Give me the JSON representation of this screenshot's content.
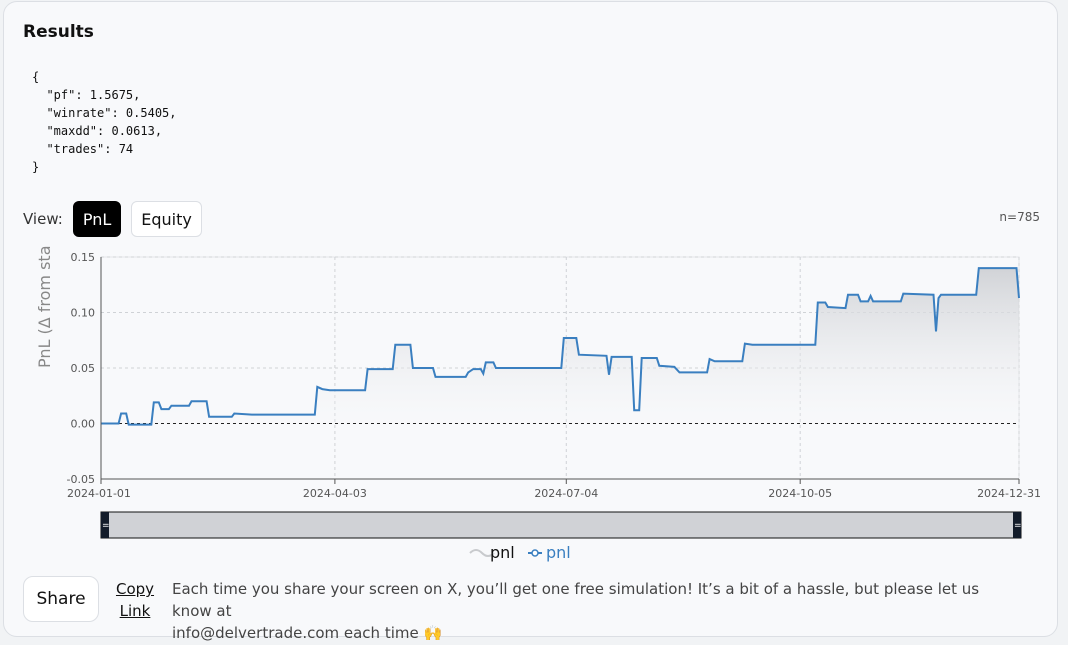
{
  "results": {
    "title": "Results",
    "json_text": "{\n  \"pf\": 1.5675,\n  \"winrate\": 0.5405,\n  \"maxdd\": 0.0613,\n  \"trades\": 74\n}"
  },
  "view": {
    "label": "View:",
    "options": [
      "PnL",
      "Equity"
    ],
    "selected": "PnL",
    "count": "n=785"
  },
  "chart_data": {
    "type": "line",
    "ylabel": "PnL (Δ from sta",
    "xlabel": "",
    "x_ticks": [
      "2024-01-01",
      "2024-04-03",
      "2024-07-04",
      "2024-10-05",
      "2024-12-31"
    ],
    "y_ticks": [
      "0.15",
      "0.10",
      "0.05",
      "0.00",
      "-0.05"
    ],
    "ylim": [
      -0.05,
      0.15
    ],
    "xlim": [
      "2024-01-01",
      "2024-12-31"
    ],
    "grid": true,
    "zero_line": true,
    "legend": [
      "pnl",
      "pnl"
    ],
    "legend_position": "bottom",
    "range_slider": true,
    "series": [
      {
        "name": "pnl",
        "points": [
          [
            "2024-01-01",
            0.0
          ],
          [
            "2024-01-08",
            0.0
          ],
          [
            "2024-01-09",
            0.009
          ],
          [
            "2024-01-11",
            0.009
          ],
          [
            "2024-01-12",
            -0.001
          ],
          [
            "2024-01-21",
            -0.001
          ],
          [
            "2024-01-22",
            0.019
          ],
          [
            "2024-01-24",
            0.019
          ],
          [
            "2024-01-25",
            0.013
          ],
          [
            "2024-01-28",
            0.013
          ],
          [
            "2024-01-29",
            0.016
          ],
          [
            "2024-02-05",
            0.016
          ],
          [
            "2024-02-06",
            0.02
          ],
          [
            "2024-02-12",
            0.02
          ],
          [
            "2024-02-13",
            0.006
          ],
          [
            "2024-02-22",
            0.006
          ],
          [
            "2024-02-23",
            0.009
          ],
          [
            "2024-03-01",
            0.008
          ],
          [
            "2024-03-26",
            0.008
          ],
          [
            "2024-03-27",
            0.033
          ],
          [
            "2024-03-29",
            0.031
          ],
          [
            "2024-04-01",
            0.03
          ],
          [
            "2024-04-15",
            0.03
          ],
          [
            "2024-04-16",
            0.049
          ],
          [
            "2024-04-26",
            0.049
          ],
          [
            "2024-04-27",
            0.071
          ],
          [
            "2024-05-03",
            0.071
          ],
          [
            "2024-05-04",
            0.05
          ],
          [
            "2024-05-12",
            0.05
          ],
          [
            "2024-05-13",
            0.042
          ],
          [
            "2024-05-25",
            0.042
          ],
          [
            "2024-05-26",
            0.046
          ],
          [
            "2024-05-28",
            0.049
          ],
          [
            "2024-05-31",
            0.049
          ],
          [
            "2024-06-01",
            0.045
          ],
          [
            "2024-06-02",
            0.055
          ],
          [
            "2024-06-05",
            0.055
          ],
          [
            "2024-06-06",
            0.05
          ],
          [
            "2024-07-02",
            0.05
          ],
          [
            "2024-07-03",
            0.077
          ],
          [
            "2024-07-08",
            0.077
          ],
          [
            "2024-07-09",
            0.062
          ],
          [
            "2024-07-20",
            0.061
          ],
          [
            "2024-07-21",
            0.044
          ],
          [
            "2024-07-22",
            0.06
          ],
          [
            "2024-07-30",
            0.06
          ],
          [
            "2024-07-31",
            0.012
          ],
          [
            "2024-08-02",
            0.012
          ],
          [
            "2024-08-03",
            0.059
          ],
          [
            "2024-08-09",
            0.059
          ],
          [
            "2024-08-10",
            0.052
          ],
          [
            "2024-08-16",
            0.051
          ],
          [
            "2024-08-18",
            0.046
          ],
          [
            "2024-08-29",
            0.046
          ],
          [
            "2024-08-30",
            0.058
          ],
          [
            "2024-09-01",
            0.056
          ],
          [
            "2024-09-12",
            0.056
          ],
          [
            "2024-09-13",
            0.072
          ],
          [
            "2024-09-16",
            0.071
          ],
          [
            "2024-10-05",
            0.071
          ],
          [
            "2024-10-11",
            0.071
          ],
          [
            "2024-10-12",
            0.109
          ],
          [
            "2024-10-15",
            0.109
          ],
          [
            "2024-10-16",
            0.105
          ],
          [
            "2024-10-23",
            0.104
          ],
          [
            "2024-10-24",
            0.116
          ],
          [
            "2024-10-28",
            0.116
          ],
          [
            "2024-10-29",
            0.11
          ],
          [
            "2024-11-01",
            0.11
          ],
          [
            "2024-11-02",
            0.115
          ],
          [
            "2024-11-03",
            0.11
          ],
          [
            "2024-11-14",
            0.11
          ],
          [
            "2024-11-15",
            0.117
          ],
          [
            "2024-11-27",
            0.116
          ],
          [
            "2024-11-28",
            0.083
          ],
          [
            "2024-11-29",
            0.113
          ],
          [
            "2024-11-30",
            0.116
          ],
          [
            "2024-12-14",
            0.116
          ],
          [
            "2024-12-15",
            0.14
          ],
          [
            "2024-12-30",
            0.14
          ],
          [
            "2024-12-31",
            0.113
          ]
        ]
      }
    ]
  },
  "footer": {
    "share_label": "Share",
    "copy_line1": "Copy",
    "copy_line2": "Link",
    "notice_line1": "Each time you share your screen on X, you’ll get one free simulation! It’s a bit of a hassle, but please let us know at",
    "notice_line2": "info@delvertrade.com each time 🙌"
  },
  "colors": {
    "line": "#3a7fc0",
    "fill_top": "#d2d4d8",
    "selected_button": "#000000",
    "slider_fill": "#d0d2d6",
    "slider_handle": "#131c2a"
  }
}
